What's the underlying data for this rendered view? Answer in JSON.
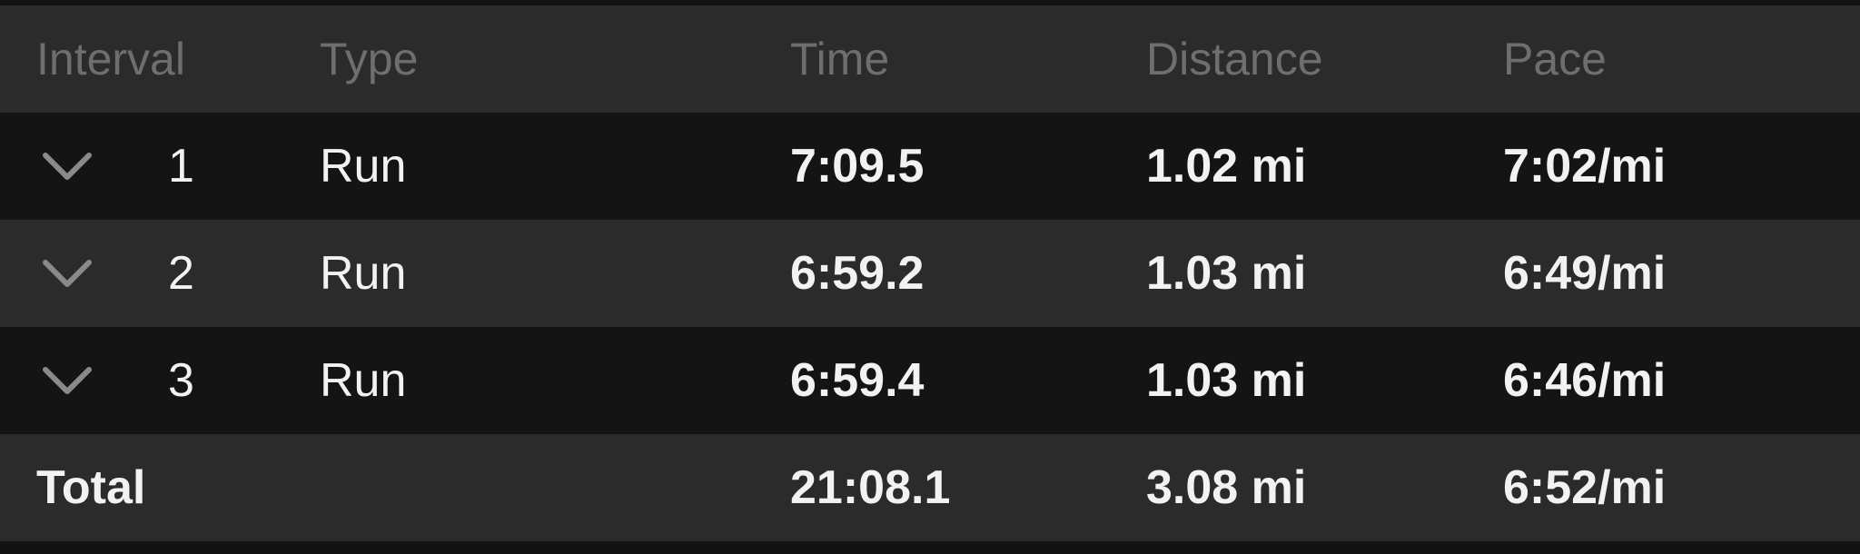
{
  "header": {
    "interval": "Interval",
    "type": "Type",
    "time": "Time",
    "distance": "Distance",
    "pace": "Pace"
  },
  "intervals": [
    {
      "number": "1",
      "type": "Run",
      "time": "7:09.5",
      "distance": "1.02 mi",
      "pace": "7:02/mi"
    },
    {
      "number": "2",
      "type": "Run",
      "time": "6:59.2",
      "distance": "1.03 mi",
      "pace": "6:49/mi"
    },
    {
      "number": "3",
      "type": "Run",
      "time": "6:59.4",
      "distance": "1.03 mi",
      "pace": "6:46/mi"
    }
  ],
  "total": {
    "label": "Total",
    "time": "21:08.1",
    "distance": "3.08 mi",
    "pace": "6:52/mi"
  },
  "icons": {
    "expand": "chevron-down-icon"
  },
  "colors": {
    "header_text": "#6e6e6e",
    "row_dark": "#141414",
    "row_light": "#2b2b2b",
    "text": "#f2f2f2",
    "chevron": "#8a8a8a"
  }
}
